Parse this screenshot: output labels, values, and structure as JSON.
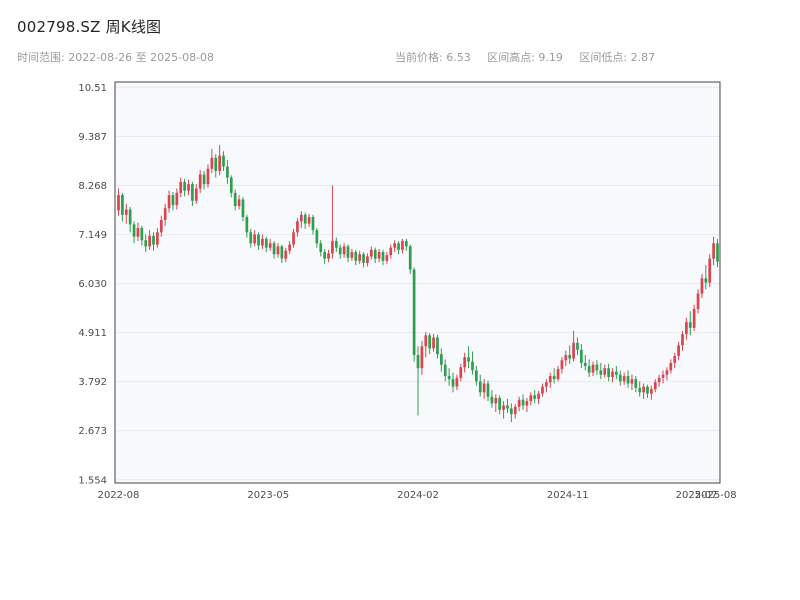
{
  "header": {
    "title": "002798.SZ 周K线图",
    "time_range": "时间范围: 2022-08-26 至 2025-08-08",
    "stats": {
      "current": "当前价格: 6.53",
      "high": "区间高点: 9.19",
      "low": "区间低点: 2.87"
    }
  },
  "chart_data": {
    "type": "candlestick",
    "title": "002798.SZ 周K线图",
    "symbol": "002798.SZ",
    "period": "weekly",
    "start_date": "2022-08-26",
    "end_date": "2025-08-08",
    "current_price": 6.53,
    "range_high": 9.19,
    "range_low": 2.87,
    "ylim": [
      1.48,
      10.63
    ],
    "yticks": {
      "values": [
        1.554,
        2.673,
        3.792,
        4.911,
        6.03,
        7.149,
        8.268,
        9.387,
        10.51
      ],
      "labels": [
        "1.554",
        "2.673",
        "3.792",
        "4.911",
        "6.030",
        "7.149",
        "8.268",
        "9.387",
        "10.51"
      ]
    },
    "xticks": [
      {
        "label": "2022-08",
        "pos": 0.0
      },
      {
        "label": "2023-05",
        "pos": 0.25
      },
      {
        "label": "2024-02",
        "pos": 0.5
      },
      {
        "label": "2024-11",
        "pos": 0.75
      },
      {
        "label": "2025-07",
        "pos": 0.965
      },
      {
        "label": "2025-08",
        "pos": 0.997
      }
    ],
    "grid": true,
    "legend": false,
    "colors": {
      "up": "#d9444f",
      "down": "#2f9e4f",
      "panel": "#f8f9fc",
      "grid": "#e8eaf1",
      "frame": "#444444",
      "tick_text": "#4d4d4d"
    },
    "candles": [
      [
        7.7,
        8.2,
        7.58,
        8.05
      ],
      [
        8.05,
        8.1,
        7.45,
        7.6
      ],
      [
        7.6,
        7.85,
        7.4,
        7.72
      ],
      [
        7.72,
        7.78,
        7.2,
        7.38
      ],
      [
        7.38,
        7.45,
        6.95,
        7.1
      ],
      [
        7.1,
        7.42,
        7.0,
        7.3
      ],
      [
        7.3,
        7.35,
        6.9,
        7.02
      ],
      [
        7.02,
        7.15,
        6.75,
        6.88
      ],
      [
        6.88,
        7.25,
        6.8,
        7.12
      ],
      [
        7.12,
        7.2,
        6.78,
        6.92
      ],
      [
        6.92,
        7.3,
        6.85,
        7.2
      ],
      [
        7.2,
        7.58,
        7.1,
        7.48
      ],
      [
        7.48,
        7.85,
        7.35,
        7.75
      ],
      [
        7.75,
        8.15,
        7.65,
        8.05
      ],
      [
        8.05,
        8.12,
        7.7,
        7.82
      ],
      [
        7.82,
        8.2,
        7.72,
        8.1
      ],
      [
        8.1,
        8.45,
        8.0,
        8.35
      ],
      [
        8.35,
        8.42,
        8.02,
        8.15
      ],
      [
        8.15,
        8.4,
        8.05,
        8.3
      ],
      [
        8.3,
        8.35,
        7.8,
        7.92
      ],
      [
        7.92,
        8.3,
        7.85,
        8.2
      ],
      [
        8.2,
        8.62,
        8.1,
        8.52
      ],
      [
        8.52,
        8.6,
        8.18,
        8.3
      ],
      [
        8.3,
        8.75,
        8.22,
        8.65
      ],
      [
        8.65,
        9.1,
        8.55,
        8.9
      ],
      [
        8.9,
        8.98,
        8.45,
        8.6
      ],
      [
        8.6,
        9.19,
        8.5,
        8.95
      ],
      [
        8.95,
        9.05,
        8.6,
        8.7
      ],
      [
        8.7,
        8.85,
        8.3,
        8.45
      ],
      [
        8.45,
        8.5,
        8.0,
        8.1
      ],
      [
        8.1,
        8.18,
        7.7,
        7.8
      ],
      [
        7.8,
        8.05,
        7.72,
        7.95
      ],
      [
        7.95,
        8.0,
        7.45,
        7.55
      ],
      [
        7.55,
        7.6,
        7.08,
        7.2
      ],
      [
        7.2,
        7.28,
        6.85,
        6.95
      ],
      [
        6.95,
        7.25,
        6.88,
        7.15
      ],
      [
        7.15,
        7.2,
        6.8,
        6.9
      ],
      [
        6.9,
        7.15,
        6.82,
        7.05
      ],
      [
        7.05,
        7.1,
        6.75,
        6.85
      ],
      [
        6.85,
        7.05,
        6.78,
        6.95
      ],
      [
        6.95,
        7.0,
        6.6,
        6.7
      ],
      [
        6.7,
        6.95,
        6.62,
        6.88
      ],
      [
        6.88,
        6.92,
        6.5,
        6.6
      ],
      [
        6.6,
        6.85,
        6.52,
        6.78
      ],
      [
        6.78,
        7.0,
        6.7,
        6.92
      ],
      [
        6.92,
        7.28,
        6.85,
        7.2
      ],
      [
        7.2,
        7.52,
        7.1,
        7.45
      ],
      [
        7.45,
        7.68,
        7.3,
        7.6
      ],
      [
        7.6,
        7.65,
        7.28,
        7.4
      ],
      [
        7.4,
        7.62,
        7.32,
        7.55
      ],
      [
        7.55,
        7.6,
        7.15,
        7.25
      ],
      [
        7.25,
        7.3,
        6.85,
        6.95
      ],
      [
        6.95,
        7.02,
        6.65,
        6.75
      ],
      [
        6.75,
        6.82,
        6.48,
        6.6
      ],
      [
        6.6,
        6.8,
        6.52,
        6.72
      ],
      [
        6.72,
        8.27,
        6.6,
        7.0
      ],
      [
        7.0,
        7.08,
        6.75,
        6.85
      ],
      [
        6.85,
        6.92,
        6.6,
        6.7
      ],
      [
        6.7,
        6.95,
        6.62,
        6.88
      ],
      [
        6.88,
        6.92,
        6.52,
        6.62
      ],
      [
        6.62,
        6.82,
        6.55,
        6.75
      ],
      [
        6.75,
        6.8,
        6.45,
        6.55
      ],
      [
        6.55,
        6.78,
        6.48,
        6.7
      ],
      [
        6.7,
        6.75,
        6.4,
        6.5
      ],
      [
        6.5,
        6.72,
        6.42,
        6.65
      ],
      [
        6.65,
        6.88,
        6.58,
        6.8
      ],
      [
        6.8,
        6.85,
        6.5,
        6.6
      ],
      [
        6.6,
        6.82,
        6.52,
        6.75
      ],
      [
        6.75,
        6.8,
        6.45,
        6.55
      ],
      [
        6.55,
        6.75,
        6.48,
        6.68
      ],
      [
        6.68,
        6.92,
        6.6,
        6.85
      ],
      [
        6.85,
        7.02,
        6.75,
        6.95
      ],
      [
        6.95,
        7.0,
        6.7,
        6.8
      ],
      [
        6.8,
        7.05,
        6.72,
        7.0
      ],
      [
        7.0,
        7.05,
        6.78,
        6.88
      ],
      [
        6.88,
        6.92,
        6.25,
        6.35
      ],
      [
        6.35,
        6.4,
        4.25,
        4.4
      ],
      [
        4.4,
        4.6,
        3.02,
        4.1
      ],
      [
        4.1,
        4.72,
        3.95,
        4.6
      ],
      [
        4.6,
        4.92,
        4.35,
        4.85
      ],
      [
        4.85,
        4.9,
        4.42,
        4.55
      ],
      [
        4.55,
        4.88,
        4.48,
        4.8
      ],
      [
        4.8,
        4.86,
        4.32,
        4.42
      ],
      [
        4.42,
        4.55,
        4.02,
        4.18
      ],
      [
        4.18,
        4.3,
        3.8,
        3.92
      ],
      [
        3.92,
        4.1,
        3.7,
        3.85
      ],
      [
        3.85,
        4.0,
        3.55,
        3.68
      ],
      [
        3.68,
        3.95,
        3.6,
        3.88
      ],
      [
        3.88,
        4.2,
        3.8,
        4.12
      ],
      [
        4.12,
        4.45,
        4.0,
        4.35
      ],
      [
        4.35,
        4.6,
        4.1,
        4.25
      ],
      [
        4.25,
        4.48,
        3.95,
        4.05
      ],
      [
        4.05,
        4.15,
        3.7,
        3.8
      ],
      [
        3.8,
        3.95,
        3.45,
        3.55
      ],
      [
        3.55,
        3.85,
        3.4,
        3.75
      ],
      [
        3.75,
        3.82,
        3.35,
        3.45
      ],
      [
        3.45,
        3.6,
        3.2,
        3.3
      ],
      [
        3.3,
        3.5,
        3.1,
        3.42
      ],
      [
        3.42,
        3.48,
        3.05,
        3.15
      ],
      [
        3.15,
        3.35,
        2.95,
        3.25
      ],
      [
        3.25,
        3.4,
        3.08,
        3.18
      ],
      [
        3.18,
        3.3,
        2.87,
        3.05
      ],
      [
        3.05,
        3.28,
        2.95,
        3.22
      ],
      [
        3.22,
        3.45,
        3.12,
        3.38
      ],
      [
        3.38,
        3.5,
        3.15,
        3.25
      ],
      [
        3.25,
        3.42,
        3.1,
        3.35
      ],
      [
        3.35,
        3.55,
        3.25,
        3.48
      ],
      [
        3.48,
        3.6,
        3.3,
        3.4
      ],
      [
        3.4,
        3.58,
        3.28,
        3.52
      ],
      [
        3.52,
        3.75,
        3.45,
        3.68
      ],
      [
        3.68,
        3.85,
        3.55,
        3.78
      ],
      [
        3.78,
        4.0,
        3.65,
        3.92
      ],
      [
        3.92,
        4.1,
        3.75,
        3.85
      ],
      [
        3.85,
        4.15,
        3.8,
        4.08
      ],
      [
        4.08,
        4.35,
        3.98,
        4.28
      ],
      [
        4.28,
        4.5,
        4.15,
        4.4
      ],
      [
        4.4,
        4.62,
        4.2,
        4.32
      ],
      [
        4.32,
        4.95,
        4.25,
        4.68
      ],
      [
        4.68,
        4.8,
        4.4,
        4.52
      ],
      [
        4.52,
        4.65,
        4.1,
        4.22
      ],
      [
        4.22,
        4.4,
        4.05,
        4.15
      ],
      [
        4.15,
        4.3,
        3.9,
        4.0
      ],
      [
        4.0,
        4.25,
        3.92,
        4.18
      ],
      [
        4.18,
        4.28,
        3.95,
        4.05
      ],
      [
        4.05,
        4.22,
        3.85,
        3.95
      ],
      [
        3.95,
        4.18,
        3.88,
        4.1
      ],
      [
        4.1,
        4.2,
        3.8,
        3.9
      ],
      [
        3.9,
        4.1,
        3.78,
        4.02
      ],
      [
        4.02,
        4.15,
        3.85,
        3.95
      ],
      [
        3.95,
        4.05,
        3.7,
        3.8
      ],
      [
        3.8,
        4.0,
        3.72,
        3.92
      ],
      [
        3.92,
        4.05,
        3.65,
        3.75
      ],
      [
        3.75,
        3.95,
        3.6,
        3.85
      ],
      [
        3.85,
        3.92,
        3.55,
        3.65
      ],
      [
        3.65,
        3.8,
        3.45,
        3.55
      ],
      [
        3.55,
        3.75,
        3.4,
        3.68
      ],
      [
        3.68,
        3.72,
        3.42,
        3.52
      ],
      [
        3.52,
        3.7,
        3.38,
        3.62
      ],
      [
        3.62,
        3.85,
        3.55,
        3.78
      ],
      [
        3.78,
        3.95,
        3.68,
        3.88
      ],
      [
        3.88,
        4.05,
        3.75,
        3.95
      ],
      [
        3.95,
        4.12,
        3.82,
        4.05
      ],
      [
        4.05,
        4.3,
        3.98,
        4.22
      ],
      [
        4.22,
        4.45,
        4.1,
        4.38
      ],
      [
        4.38,
        4.7,
        4.28,
        4.62
      ],
      [
        4.62,
        4.95,
        4.5,
        4.88
      ],
      [
        4.88,
        5.25,
        4.75,
        5.15
      ],
      [
        5.15,
        5.4,
        4.85,
        5.02
      ],
      [
        5.02,
        5.55,
        4.95,
        5.45
      ],
      [
        5.45,
        5.9,
        5.35,
        5.8
      ],
      [
        5.8,
        6.25,
        5.7,
        6.15
      ],
      [
        6.15,
        6.45,
        5.9,
        6.05
      ],
      [
        6.05,
        6.7,
        5.95,
        6.6
      ],
      [
        6.6,
        7.1,
        6.45,
        6.95
      ],
      [
        6.95,
        7.05,
        6.4,
        6.53
      ]
    ]
  }
}
